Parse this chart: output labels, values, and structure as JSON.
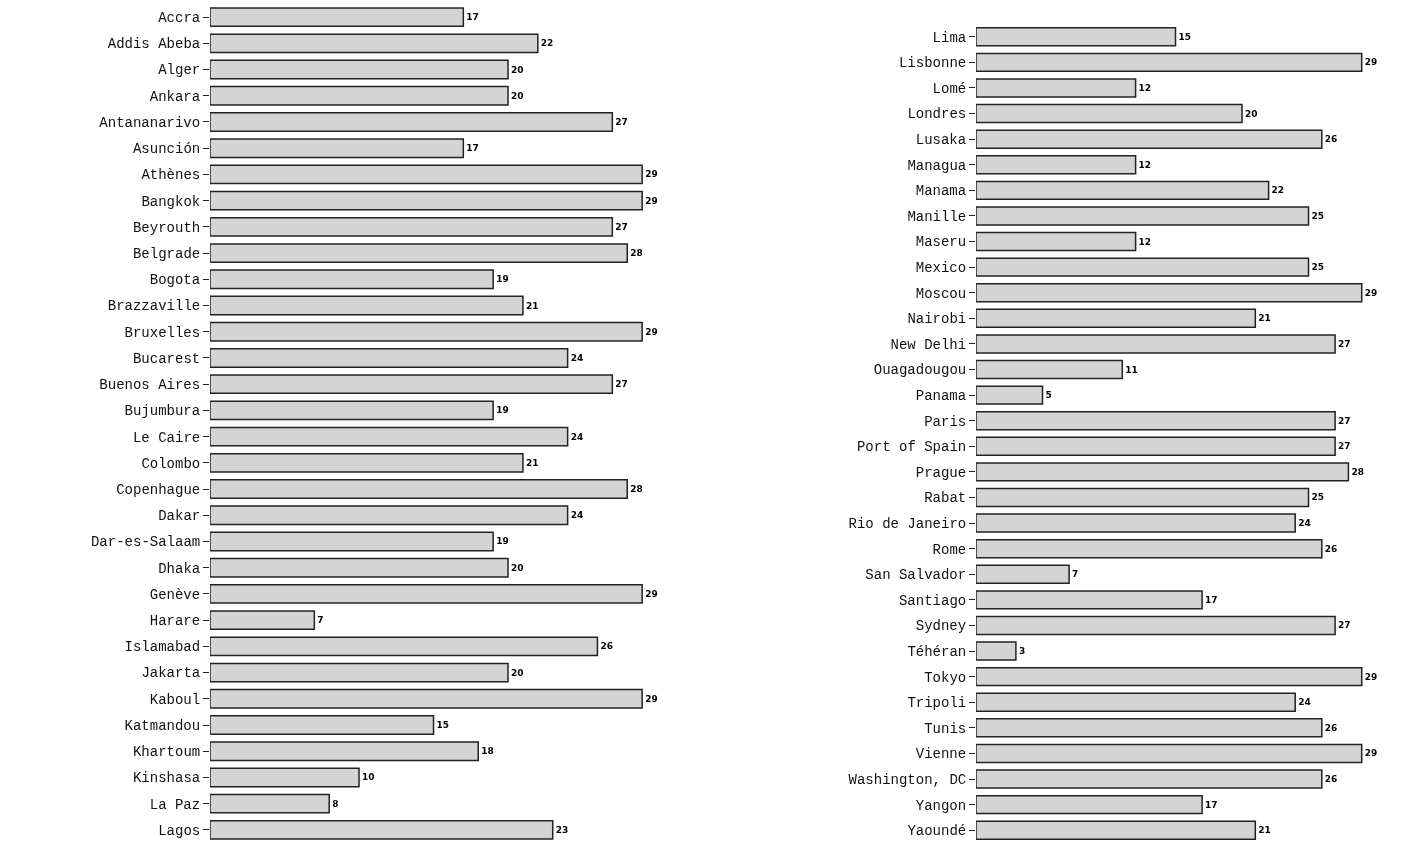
{
  "chart_data": [
    {
      "type": "bar",
      "orientation": "horizontal",
      "data_labels": true,
      "color": "#d4d4d4",
      "categories": [
        "Accra",
        "Addis Abeba",
        "Alger",
        "Ankara",
        "Antananarivo",
        "Asunción",
        "Athènes",
        "Bangkok",
        "Beyrouth",
        "Belgrade",
        "Bogota",
        "Brazzaville",
        "Bruxelles",
        "Bucarest",
        "Buenos Aires",
        "Bujumbura",
        "Le Caire",
        "Colombo",
        "Copenhague",
        "Dakar",
        "Dar-es-Salaam",
        "Dhaka",
        "Genève",
        "Harare",
        "Islamabad",
        "Jakarta",
        "Kaboul",
        "Katmandou",
        "Khartoum",
        "Kinshasa",
        "La Paz",
        "Lagos"
      ],
      "values": [
        17,
        22,
        20,
        20,
        27,
        17,
        29,
        29,
        27,
        28,
        19,
        21,
        29,
        24,
        27,
        19,
        24,
        21,
        28,
        24,
        19,
        20,
        29,
        7,
        26,
        20,
        29,
        15,
        18,
        10,
        8,
        23
      ]
    },
    {
      "type": "bar",
      "orientation": "horizontal",
      "data_labels": true,
      "color": "#d4d4d4",
      "categories": [
        "Lima",
        "Lisbonne",
        "Lomé",
        "Londres",
        "Lusaka",
        "Managua",
        "Manama",
        "Manille",
        "Maseru",
        "Mexico",
        "Moscou",
        "Nairobi",
        "New Delhi",
        "Ouagadougou",
        "Panama",
        "Paris",
        "Port of Spain",
        "Prague",
        "Rabat",
        "Rio de Janeiro",
        "Rome",
        "San Salvador",
        "Santiago",
        "Sydney",
        "Téhéran",
        "Tokyo",
        "Tripoli",
        "Tunis",
        "Vienne",
        "Washington, DC",
        "Yangon",
        "Yaoundé"
      ],
      "values": [
        15,
        29,
        12,
        20,
        26,
        12,
        22,
        25,
        12,
        25,
        29,
        21,
        27,
        11,
        5,
        27,
        27,
        28,
        25,
        24,
        26,
        7,
        17,
        27,
        3,
        29,
        24,
        26,
        29,
        26,
        17,
        21
      ]
    }
  ]
}
